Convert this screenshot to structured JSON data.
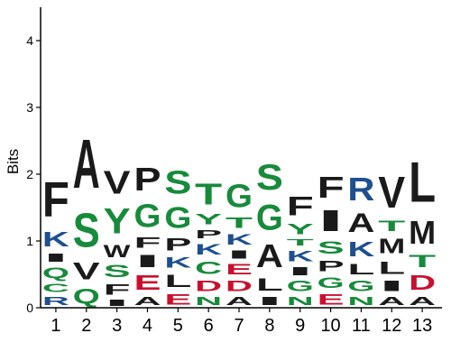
{
  "chart_data": {
    "type": "sequence-logo",
    "title": "",
    "xlabel": "",
    "ylabel": "Bits",
    "ylim": [
      0,
      4.5
    ],
    "yticks": [
      0,
      1,
      2,
      3,
      4
    ],
    "colors": {
      "hydrophobic": "#1a1a1a",
      "polar": "#178a3c",
      "basic": "#1f4f8f",
      "acidic": "#c8102e"
    },
    "color_groups": {
      "hydrophobic": [
        "A",
        "V",
        "L",
        "I",
        "P",
        "W",
        "F",
        "M"
      ],
      "polar": [
        "S",
        "T",
        "Y",
        "G",
        "C",
        "Q",
        "N"
      ],
      "basic": [
        "K",
        "R",
        "H"
      ],
      "acidic": [
        "D",
        "E"
      ]
    },
    "positions": [
      {
        "label": "1",
        "letters": [
          {
            "aa": "R",
            "bits": 0.2
          },
          {
            "aa": "C",
            "bits": 0.2
          },
          {
            "aa": "Q",
            "bits": 0.25
          },
          {
            "aa": "I",
            "bits": 0.2
          },
          {
            "aa": "K",
            "bits": 0.35
          },
          {
            "aa": "F",
            "bits": 0.83
          }
        ]
      },
      {
        "label": "2",
        "letters": [
          {
            "aa": "Q",
            "bits": 0.35
          },
          {
            "aa": "V",
            "bits": 0.4
          },
          {
            "aa": "S",
            "bits": 0.82
          },
          {
            "aa": "A",
            "bits": 1.17
          }
        ]
      },
      {
        "label": "3",
        "letters": [
          {
            "aa": "I",
            "bits": 0.15
          },
          {
            "aa": "F",
            "bits": 0.25
          },
          {
            "aa": "S",
            "bits": 0.3
          },
          {
            "aa": "W",
            "bits": 0.3
          },
          {
            "aa": "Y",
            "bits": 0.6
          },
          {
            "aa": "V",
            "bits": 0.55
          }
        ]
      },
      {
        "label": "4",
        "letters": [
          {
            "aa": "A",
            "bits": 0.2
          },
          {
            "aa": "E",
            "bits": 0.35
          },
          {
            "aa": "I",
            "bits": 0.3
          },
          {
            "aa": "F",
            "bits": 0.25
          },
          {
            "aa": "G",
            "bits": 0.55
          },
          {
            "aa": "P",
            "bits": 0.55
          }
        ]
      },
      {
        "label": "5",
        "letters": [
          {
            "aa": "E",
            "bits": 0.25
          },
          {
            "aa": "L",
            "bits": 0.3
          },
          {
            "aa": "K",
            "bits": 0.25
          },
          {
            "aa": "P",
            "bits": 0.3
          },
          {
            "aa": "G",
            "bits": 0.5
          },
          {
            "aa": "S",
            "bits": 0.55
          }
        ]
      },
      {
        "label": "6",
        "letters": [
          {
            "aa": "N",
            "bits": 0.2
          },
          {
            "aa": "D",
            "bits": 0.25
          },
          {
            "aa": "C",
            "bits": 0.3
          },
          {
            "aa": "K",
            "bits": 0.25
          },
          {
            "aa": "P",
            "bits": 0.2
          },
          {
            "aa": "Y",
            "bits": 0.25
          },
          {
            "aa": "T",
            "bits": 0.5
          }
        ]
      },
      {
        "label": "7",
        "letters": [
          {
            "aa": "A",
            "bits": 0.2
          },
          {
            "aa": "D",
            "bits": 0.25
          },
          {
            "aa": "E",
            "bits": 0.25
          },
          {
            "aa": "I",
            "bits": 0.2
          },
          {
            "aa": "K",
            "bits": 0.25
          },
          {
            "aa": "T",
            "bits": 0.25
          },
          {
            "aa": "G",
            "bits": 0.55
          }
        ]
      },
      {
        "label": "8",
        "letters": [
          {
            "aa": "I",
            "bits": 0.2
          },
          {
            "aa": "L",
            "bits": 0.3
          },
          {
            "aa": "A",
            "bits": 0.55
          },
          {
            "aa": "G",
            "bits": 0.6
          },
          {
            "aa": "S",
            "bits": 0.6
          }
        ]
      },
      {
        "label": "9",
        "letters": [
          {
            "aa": "N",
            "bits": 0.2
          },
          {
            "aa": "G",
            "bits": 0.25
          },
          {
            "aa": "I",
            "bits": 0.2
          },
          {
            "aa": "K",
            "bits": 0.25
          },
          {
            "aa": "T",
            "bits": 0.15
          },
          {
            "aa": "Y",
            "bits": 0.25
          },
          {
            "aa": "F",
            "bits": 0.45
          }
        ]
      },
      {
        "label": "10",
        "letters": [
          {
            "aa": "E",
            "bits": 0.25
          },
          {
            "aa": "G",
            "bits": 0.25
          },
          {
            "aa": "P",
            "bits": 0.25
          },
          {
            "aa": "S",
            "bits": 0.3
          },
          {
            "aa": "I",
            "bits": 0.5
          },
          {
            "aa": "F",
            "bits": 0.5
          }
        ]
      },
      {
        "label": "11",
        "letters": [
          {
            "aa": "N",
            "bits": 0.2
          },
          {
            "aa": "G",
            "bits": 0.25
          },
          {
            "aa": "L",
            "bits": 0.25
          },
          {
            "aa": "K",
            "bits": 0.35
          },
          {
            "aa": "A",
            "bits": 0.45
          },
          {
            "aa": "R",
            "bits": 0.55
          }
        ]
      },
      {
        "label": "12",
        "letters": [
          {
            "aa": "A",
            "bits": 0.2
          },
          {
            "aa": "I",
            "bits": 0.25
          },
          {
            "aa": "L",
            "bits": 0.3
          },
          {
            "aa": "M",
            "bits": 0.35
          },
          {
            "aa": "T",
            "bits": 0.25
          },
          {
            "aa": "V",
            "bits": 0.75
          }
        ]
      },
      {
        "label": "13",
        "letters": [
          {
            "aa": "A",
            "bits": 0.2
          },
          {
            "aa": "D",
            "bits": 0.35
          },
          {
            "aa": "T",
            "bits": 0.3
          },
          {
            "aa": "M",
            "bits": 0.55
          },
          {
            "aa": "L",
            "bits": 0.95
          }
        ]
      }
    ]
  }
}
